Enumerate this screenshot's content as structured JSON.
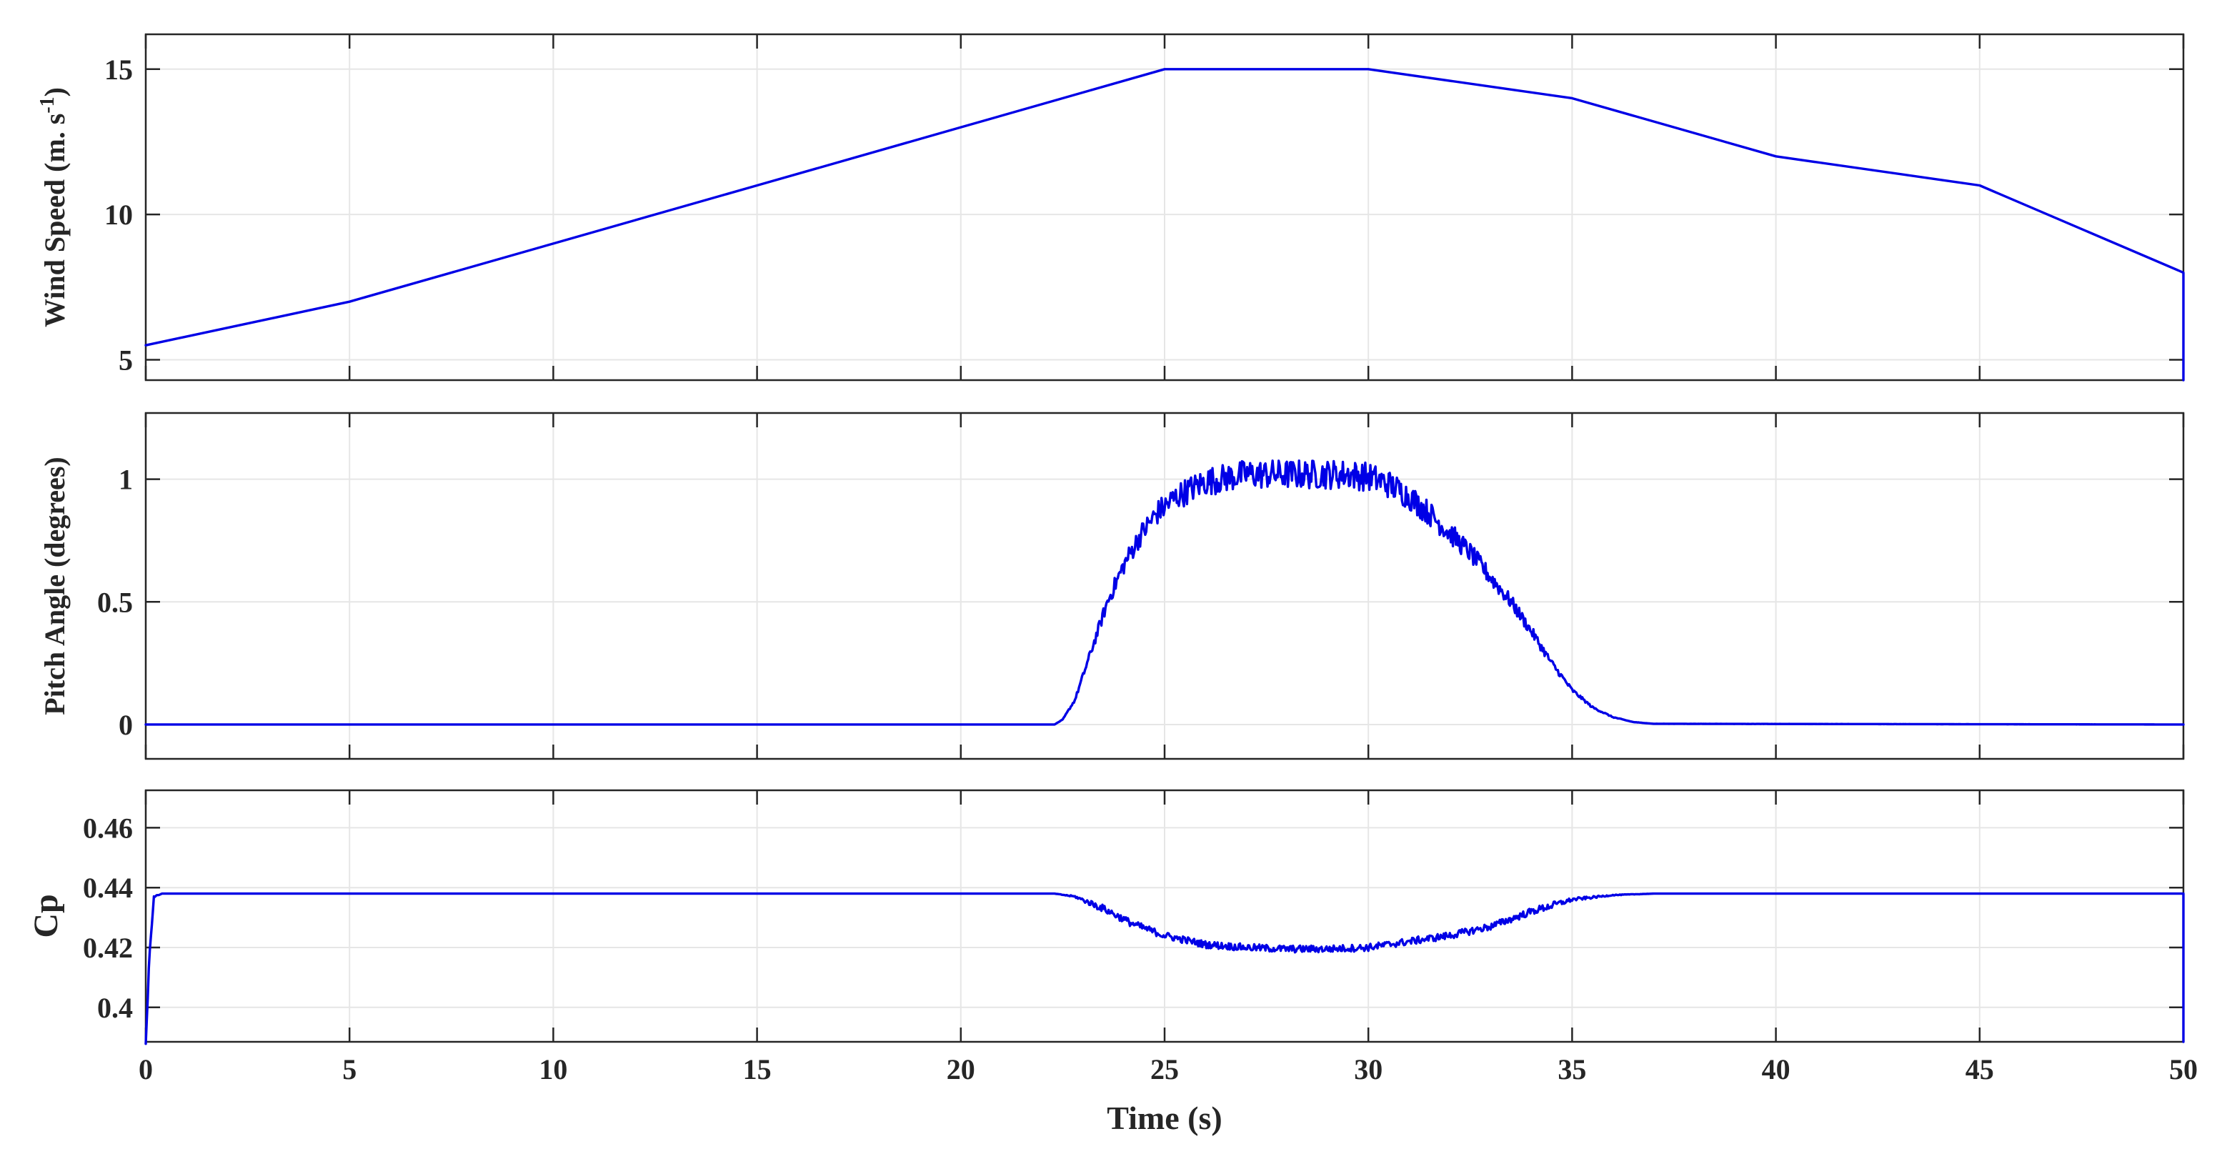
{
  "chart_data": [
    {
      "type": "line",
      "ylabel": "Wind Speed (m. s",
      "ylabel_sup": "-1",
      "ylabel_close": ")",
      "xlim": [
        0,
        50
      ],
      "ylim": [
        4.3,
        16.2
      ],
      "x_ticks": [
        0,
        5,
        10,
        15,
        20,
        25,
        30,
        35,
        40,
        45,
        50
      ],
      "y_ticks": [
        5,
        10,
        15
      ],
      "y_tick_labels": [
        "5",
        "10",
        "15"
      ],
      "grid": true,
      "color": "#0000e6",
      "series": [
        {
          "x": [
            0,
            5,
            10,
            15,
            20,
            25,
            30,
            35,
            40,
            45,
            50
          ],
          "y": [
            5.5,
            7,
            9,
            11,
            13,
            15,
            15,
            14,
            12,
            11,
            8
          ]
        }
      ]
    },
    {
      "type": "line",
      "ylabel": "Pitch Angle (degrees)",
      "xlim": [
        0,
        50
      ],
      "ylim": [
        -0.14,
        1.27
      ],
      "x_ticks": [
        0,
        5,
        10,
        15,
        20,
        25,
        30,
        35,
        40,
        45,
        50
      ],
      "y_ticks": [
        0,
        0.5,
        1
      ],
      "y_tick_labels": [
        "0",
        "0.5",
        "1"
      ],
      "grid": true,
      "color": "#0000e6",
      "noise_amplitude": 0.06,
      "series": [
        {
          "x": [
            0,
            22.3,
            22.5,
            22.8,
            23,
            23.3,
            23.6,
            24,
            24.4,
            24.8,
            25.3,
            26,
            27,
            28,
            29,
            29.5,
            30,
            30.5,
            31,
            31.5,
            32,
            32.5,
            33,
            33.5,
            34,
            34.5,
            35,
            35.5,
            36,
            36.5,
            37,
            50
          ],
          "y": [
            0,
            0,
            0.02,
            0.1,
            0.2,
            0.35,
            0.5,
            0.65,
            0.77,
            0.86,
            0.93,
            0.99,
            1.02,
            1.02,
            1.02,
            1.02,
            1.01,
            0.98,
            0.93,
            0.86,
            0.78,
            0.7,
            0.6,
            0.5,
            0.38,
            0.25,
            0.14,
            0.07,
            0.03,
            0.01,
            0.003,
            0
          ]
        }
      ]
    },
    {
      "type": "line",
      "ylabel": "Cp",
      "xlabel": "Time (s)",
      "xlim": [
        0,
        50
      ],
      "ylim": [
        0.3885,
        0.4725
      ],
      "x_ticks": [
        0,
        5,
        10,
        15,
        20,
        25,
        30,
        35,
        40,
        45,
        50
      ],
      "x_tick_labels": [
        "0",
        "5",
        "10",
        "15",
        "20",
        "25",
        "30",
        "35",
        "40",
        "45",
        "50"
      ],
      "y_ticks": [
        0.4,
        0.42,
        0.44,
        0.46
      ],
      "y_tick_labels": [
        "0.4",
        "0.42",
        "0.44",
        "0.46"
      ],
      "grid": true,
      "color": "#0000e6",
      "noise_amplitude": 0.0012,
      "series": [
        {
          "x": [
            0,
            0.1,
            0.2,
            0.4,
            22.3,
            22.8,
            23.5,
            24.2,
            25,
            26,
            27,
            28,
            29,
            30,
            31,
            32,
            33,
            34,
            35,
            36,
            37,
            50
          ],
          "y": [
            0.3885,
            0.42,
            0.437,
            0.438,
            0.438,
            0.437,
            0.433,
            0.428,
            0.424,
            0.421,
            0.42,
            0.4195,
            0.4195,
            0.42,
            0.422,
            0.424,
            0.427,
            0.432,
            0.436,
            0.4375,
            0.438,
            0.438
          ]
        }
      ]
    }
  ]
}
